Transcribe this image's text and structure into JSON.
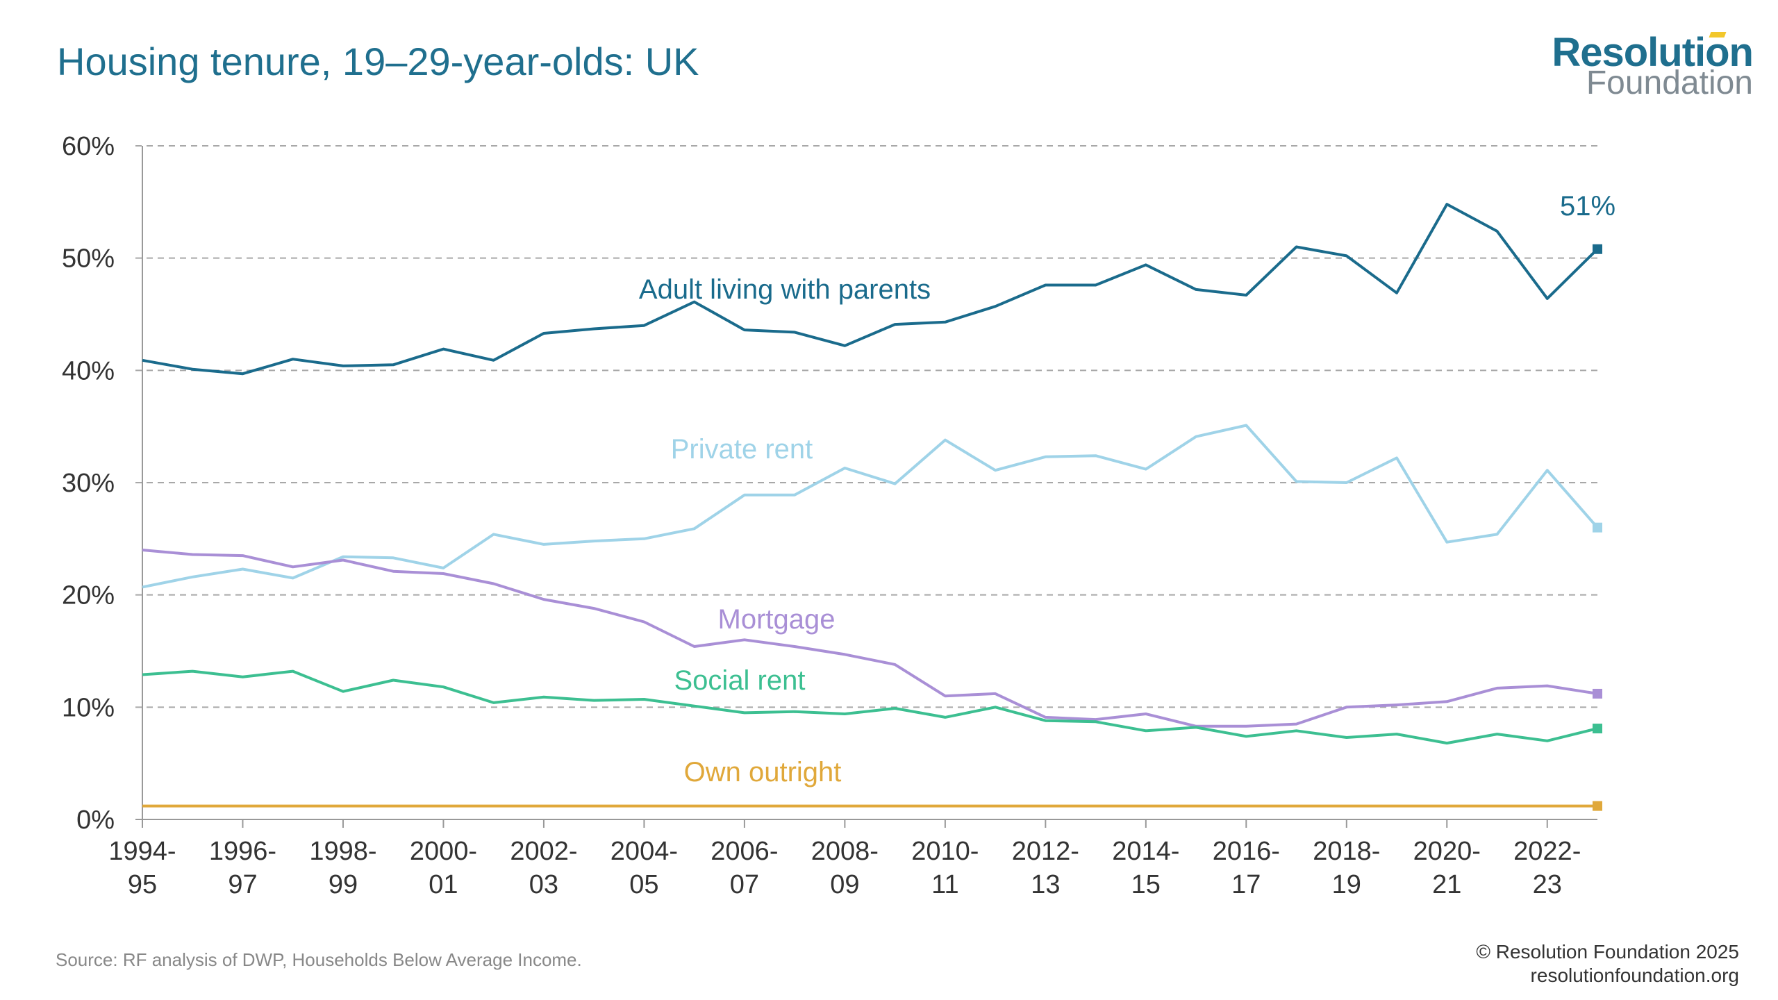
{
  "header": {
    "title": "Housing tenure, 19–29-year-olds: UK"
  },
  "logo": {
    "name": "Resolution",
    "sub": "Foundation"
  },
  "footer": {
    "source": "Source: RF analysis of DWP, Households Below Average Income.",
    "copyright_line1": "© Resolution Foundation 2025",
    "copyright_line2": "resolutionfoundation.org"
  },
  "chart_data": {
    "type": "line",
    "title": "Housing tenure, 19–29-year-olds: UK",
    "xlabel": "",
    "ylabel": "",
    "ylim": [
      0,
      60
    ],
    "yticks": [
      "0%",
      "10%",
      "20%",
      "30%",
      "40%",
      "50%",
      "60%"
    ],
    "grid": true,
    "categories": [
      "1994-95",
      "1995-96",
      "1996-97",
      "1997-98",
      "1998-99",
      "1999-00",
      "2000-01",
      "2001-02",
      "2002-03",
      "2003-04",
      "2004-05",
      "2005-06",
      "2006-07",
      "2007-08",
      "2008-09",
      "2009-10",
      "2010-11",
      "2011-12",
      "2012-13",
      "2013-14",
      "2014-15",
      "2015-16",
      "2016-17",
      "2017-18",
      "2018-19",
      "2019-20",
      "2020-21",
      "2021-22",
      "2022-23",
      "2023-24"
    ],
    "xtick_labels": [
      [
        "1994-",
        "95"
      ],
      [
        "1996-",
        "97"
      ],
      [
        "1998-",
        "99"
      ],
      [
        "2000-",
        "01"
      ],
      [
        "2002-",
        "03"
      ],
      [
        "2004-",
        "05"
      ],
      [
        "2006-",
        "07"
      ],
      [
        "2008-",
        "09"
      ],
      [
        "2010-",
        "11"
      ],
      [
        "2012-",
        "13"
      ],
      [
        "2014-",
        "15"
      ],
      [
        "2016-",
        "17"
      ],
      [
        "2018-",
        "19"
      ],
      [
        "2020-",
        "21"
      ],
      [
        "2022-",
        "23"
      ]
    ],
    "end_label": "51%",
    "series": [
      {
        "name": "Adult living with parents",
        "color": "#1a6b8c",
        "values": [
          40.9,
          40.1,
          39.7,
          41.0,
          40.4,
          40.5,
          41.9,
          40.9,
          43.3,
          43.7,
          44.0,
          46.1,
          43.6,
          43.4,
          42.2,
          44.1,
          44.3,
          45.7,
          47.6,
          47.6,
          49.4,
          47.2,
          46.7,
          51.0,
          50.2,
          46.9,
          54.8,
          52.4,
          46.4,
          50.8
        ]
      },
      {
        "name": "Private rent",
        "color": "#9fd3e8",
        "values": [
          20.7,
          21.6,
          22.3,
          21.5,
          23.4,
          23.3,
          22.4,
          25.4,
          24.5,
          24.8,
          25.0,
          25.9,
          28.9,
          28.9,
          31.3,
          29.9,
          33.8,
          31.1,
          32.3,
          32.4,
          31.2,
          34.1,
          35.1,
          30.1,
          30.0,
          32.2,
          24.7,
          25.4,
          31.1,
          26.0
        ]
      },
      {
        "name": "Mortgage",
        "color": "#a98fd6",
        "values": [
          24.0,
          23.6,
          23.5,
          22.5,
          23.1,
          22.1,
          21.9,
          21.0,
          19.6,
          18.8,
          17.6,
          15.4,
          16.0,
          15.4,
          14.7,
          13.8,
          11.0,
          11.2,
          9.1,
          8.9,
          9.4,
          8.3,
          8.3,
          8.5,
          10.0,
          10.2,
          10.5,
          11.7,
          11.9,
          11.2
        ]
      },
      {
        "name": "Social rent",
        "color": "#3cbf91",
        "values": [
          12.9,
          13.2,
          12.7,
          13.2,
          11.4,
          12.4,
          11.8,
          10.4,
          10.9,
          10.6,
          10.7,
          10.1,
          9.5,
          9.6,
          9.4,
          9.9,
          9.1,
          10.0,
          8.8,
          8.7,
          7.9,
          8.2,
          7.4,
          7.9,
          7.3,
          7.6,
          6.8,
          7.6,
          7.0,
          8.1
        ]
      },
      {
        "name": "Own outright",
        "color": "#e0a83a",
        "values": [
          1.2,
          1.2,
          1.2,
          1.2,
          1.2,
          1.2,
          1.2,
          1.2,
          1.2,
          1.2,
          1.2,
          1.2,
          1.2,
          1.2,
          1.2,
          1.2,
          1.2,
          1.2,
          1.2,
          1.2,
          1.2,
          1.2,
          1.2,
          1.2,
          1.2,
          1.2,
          1.2,
          1.2,
          1.2,
          1.2
        ]
      }
    ]
  }
}
